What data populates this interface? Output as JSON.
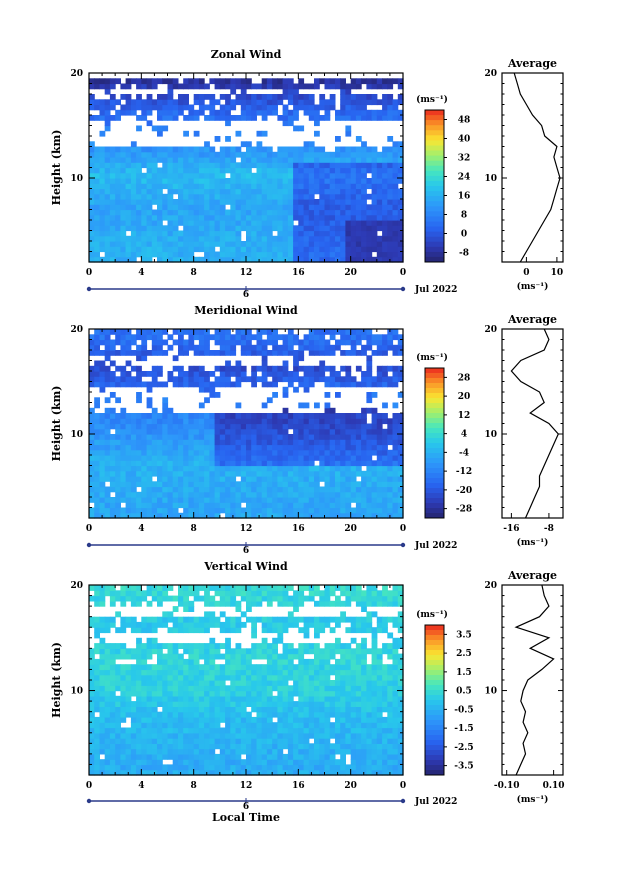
{
  "chart_data": [
    {
      "type": "heatmap",
      "title": "Zonal Wind",
      "xlabel": "",
      "ylabel": "Height (km)",
      "xlim": [
        0,
        24
      ],
      "ylim": [
        2,
        20
      ],
      "xticks": [
        "0",
        "4",
        "8",
        "12",
        "16",
        "20",
        "0"
      ],
      "yticks": [
        "10",
        "20"
      ],
      "date_label": "Jul 2022",
      "day_label": "6",
      "colorbar": {
        "unit": "(ms⁻¹)",
        "ticks": [
          "48",
          "40",
          "32",
          "24",
          "16",
          "8",
          "0",
          "-8"
        ],
        "range": [
          -8,
          52
        ]
      },
      "profile": {
        "title": "Average",
        "xlabel": "(ms⁻¹)",
        "xticks": [
          "0",
          "10"
        ],
        "xlim": [
          -8,
          12
        ],
        "yticks": [
          "10",
          "20"
        ],
        "heights": [
          2.0,
          3.0,
          4.0,
          5.0,
          6.0,
          7.0,
          8.0,
          9.0,
          10.0,
          11.0,
          12.0,
          13.0,
          14.0,
          15.0,
          16.0,
          17.0,
          18.0,
          19.0,
          20.0
        ],
        "values": [
          -2,
          0,
          2,
          4,
          6,
          8,
          9,
          10,
          11,
          10,
          9,
          10,
          6,
          5,
          2,
          0,
          -2,
          -3,
          -4
        ]
      },
      "field": {
        "nx": 60,
        "ny": 36,
        "x_range": [
          0,
          24
        ],
        "y_range": [
          2,
          20
        ],
        "gap_bands_km": [
          [
            12.5,
            15.5
          ],
          [
            17.5,
            18.3
          ]
        ],
        "top_km": 19.3,
        "levels": [
          {
            "z": 3,
            "v": 18
          },
          {
            "z": 7,
            "v": 16
          },
          {
            "z": 10,
            "v": 20
          },
          {
            "z": 13,
            "v": 12
          },
          {
            "z": 16,
            "v": 6
          },
          {
            "z": 19,
            "v": -4
          }
        ],
        "anomaly": {
          "t0": 15.5,
          "z0": 2.0,
          "z1": 11.0,
          "dv": -12,
          "zero_region": {
            "t0": 19.5,
            "z1": 5.5
          }
        }
      }
    },
    {
      "type": "heatmap",
      "title": "Meridional Wind",
      "xlabel": "",
      "ylabel": "Height (km)",
      "xlim": [
        0,
        24
      ],
      "ylim": [
        2,
        20
      ],
      "xticks": [
        "0",
        "4",
        "8",
        "12",
        "16",
        "20",
        "0"
      ],
      "yticks": [
        "10",
        "20"
      ],
      "date_label": "Jul 2022",
      "day_label": "6",
      "colorbar": {
        "unit": "(ms⁻¹)",
        "ticks": [
          "28",
          "20",
          "12",
          "4",
          "-4",
          "-12",
          "-20",
          "-28"
        ],
        "range": [
          -32,
          32
        ]
      },
      "profile": {
        "title": "Average",
        "xlabel": "(ms⁻¹)",
        "xticks": [
          "-16",
          "-8"
        ],
        "xlim": [
          -18,
          -5
        ],
        "yticks": [
          "10",
          "20"
        ],
        "heights": [
          2.0,
          3.0,
          4.0,
          5.0,
          6.0,
          7.0,
          8.0,
          9.0,
          10.0,
          11.0,
          12.0,
          13.0,
          14.0,
          15.0,
          16.0,
          17.0,
          18.0,
          19.0,
          20.0
        ],
        "values": [
          -13,
          -12,
          -11,
          -10,
          -10,
          -9,
          -8,
          -7,
          -6,
          -8,
          -12,
          -9,
          -10,
          -14,
          -16,
          -14,
          -9,
          -8,
          -9
        ]
      },
      "field": {
        "nx": 60,
        "ny": 36,
        "x_range": [
          0,
          24
        ],
        "y_range": [
          2,
          20
        ],
        "gap_bands_km": [
          [
            11.5,
            14.5
          ],
          [
            16.0,
            17.3
          ]
        ],
        "top_km": 19.6,
        "levels": [
          {
            "z": 3,
            "v": -6
          },
          {
            "z": 7,
            "v": -4
          },
          {
            "z": 10,
            "v": -10
          },
          {
            "z": 13,
            "v": -14
          },
          {
            "z": 16,
            "v": -22
          },
          {
            "z": 19,
            "v": -16
          }
        ],
        "anomaly": {
          "t0": 9.5,
          "z0": 7.0,
          "z1": 12.0,
          "dv": -12,
          "zero_region": {
            "t0": 0.0,
            "z1": 0.0
          }
        }
      }
    },
    {
      "type": "heatmap",
      "title": "Vertical Wind",
      "xlabel": "Local Time",
      "ylabel": "Height (km)",
      "xlim": [
        0,
        24
      ],
      "ylim": [
        2,
        20
      ],
      "xticks": [
        "0",
        "4",
        "8",
        "12",
        "16",
        "20",
        "0"
      ],
      "yticks": [
        "10",
        "20"
      ],
      "date_label": "Jul 2022",
      "day_label": "6",
      "colorbar": {
        "unit": "(ms⁻¹)",
        "ticks": [
          "3.5",
          "2.5",
          "1.5",
          "0.5",
          "-0.5",
          "-1.5",
          "-2.5",
          "-3.5"
        ],
        "range": [
          -4,
          4
        ]
      },
      "profile": {
        "title": "Average",
        "xlabel": "(ms⁻¹)",
        "xticks": [
          "-0.10",
          "0.10"
        ],
        "xlim": [
          -0.12,
          0.14
        ],
        "yticks": [
          "10",
          "20"
        ],
        "heights": [
          2.0,
          3.0,
          4.0,
          5.0,
          6.0,
          7.0,
          8.0,
          9.0,
          10.0,
          11.0,
          12.0,
          13.0,
          14.0,
          15.0,
          16.0,
          17.0,
          18.0,
          19.0,
          20.0
        ],
        "values": [
          -0.06,
          -0.04,
          -0.02,
          -0.03,
          -0.01,
          -0.03,
          -0.02,
          -0.04,
          -0.03,
          -0.01,
          0.05,
          0.1,
          0.0,
          0.08,
          -0.06,
          0.04,
          0.08,
          0.06,
          0.05
        ]
      },
      "field": {
        "nx": 60,
        "ny": 36,
        "x_range": [
          0,
          24
        ],
        "y_range": [
          2,
          20
        ],
        "gap_bands_km": [
          [
            14.2,
            15.5
          ],
          [
            16.5,
            17.8
          ]
        ],
        "top_km": 20.0,
        "levels": [
          {
            "z": 3,
            "v": -0.6
          },
          {
            "z": 7,
            "v": -0.3
          },
          {
            "z": 10,
            "v": 0.2
          },
          {
            "z": 13,
            "v": 0.3
          },
          {
            "z": 16,
            "v": 0.0
          },
          {
            "z": 19,
            "v": 0.4
          }
        ],
        "anomaly": {
          "t0": 24.0,
          "z0": 0.0,
          "z1": 0.0,
          "dv": 0,
          "zero_region": {
            "t0": 0.0,
            "z1": 0.0
          }
        }
      }
    }
  ]
}
